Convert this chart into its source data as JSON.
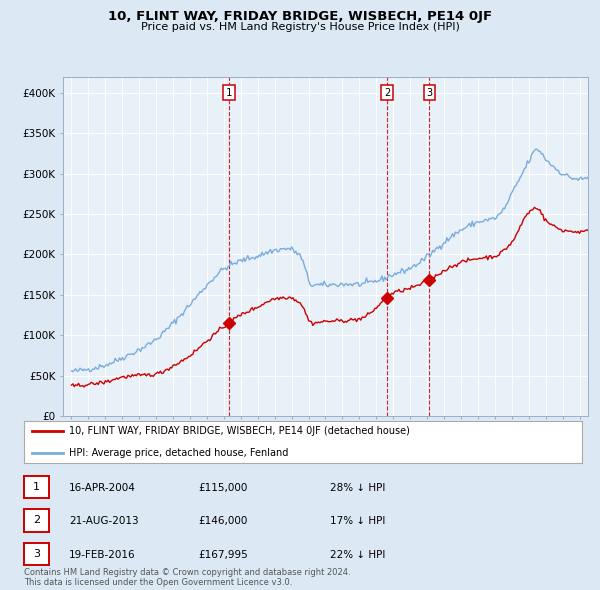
{
  "title": "10, FLINT WAY, FRIDAY BRIDGE, WISBECH, PE14 0JF",
  "subtitle": "Price paid vs. HM Land Registry's House Price Index (HPI)",
  "transactions": [
    {
      "num": 1,
      "date": "16-APR-2004",
      "date_x": 2004.29,
      "price": 115000,
      "pct": "28%",
      "marker_y": 115000
    },
    {
      "num": 2,
      "date": "21-AUG-2013",
      "date_x": 2013.63,
      "price": 146000,
      "pct": "17%",
      "marker_y": 146000
    },
    {
      "num": 3,
      "date": "19-FEB-2016",
      "date_x": 2016.13,
      "price": 167995,
      "pct": "22%",
      "marker_y": 167995
    }
  ],
  "legend_line1": "10, FLINT WAY, FRIDAY BRIDGE, WISBECH, PE14 0JF (detached house)",
  "legend_line2": "HPI: Average price, detached house, Fenland",
  "copyright_text": "Contains HM Land Registry data © Crown copyright and database right 2024.\nThis data is licensed under the Open Government Licence v3.0.",
  "hpi_color": "#7aaddc",
  "property_color": "#cc0000",
  "bg_color": "#dce9f5",
  "plot_bg": "#e8f0f8",
  "ylim": [
    0,
    420000
  ],
  "xlim": [
    1994.5,
    2025.5
  ],
  "hpi_anchors_t": [
    1995,
    1996,
    1997,
    1998,
    1999,
    2000,
    2001,
    2002,
    2003,
    2004,
    2005,
    2006,
    2007,
    2007.8,
    2008.5,
    2009.2,
    2010,
    2011,
    2012,
    2013,
    2014,
    2015,
    2016,
    2017,
    2018,
    2019,
    2020,
    2020.5,
    2021,
    2021.5,
    2022,
    2022.5,
    2023,
    2023.5,
    2024,
    2024.5,
    2025
  ],
  "hpi_anchors_v": [
    55000,
    58000,
    63000,
    72000,
    82000,
    95000,
    115000,
    138000,
    162000,
    182000,
    192000,
    198000,
    205000,
    207000,
    198000,
    162000,
    162000,
    163000,
    163000,
    167000,
    175000,
    183000,
    197000,
    215000,
    230000,
    240000,
    245000,
    255000,
    275000,
    295000,
    315000,
    330000,
    318000,
    308000,
    300000,
    295000,
    293000
  ],
  "prop_anchors_t": [
    1995,
    1996,
    1997,
    1998,
    1999,
    2000,
    2001,
    2002,
    2003,
    2004.29,
    2005,
    2006,
    2007,
    2007.8,
    2008.5,
    2009.2,
    2010,
    2011,
    2012,
    2013.63,
    2014,
    2015,
    2016.13,
    2017,
    2018,
    2019,
    2020,
    2021,
    2022,
    2022.5,
    2023,
    2023.5,
    2024,
    2025
  ],
  "prop_anchors_v": [
    37000,
    39000,
    42000,
    48000,
    50000,
    52000,
    62000,
    75000,
    93000,
    115000,
    125000,
    135000,
    145000,
    147000,
    140000,
    115000,
    117000,
    118000,
    120000,
    146000,
    152000,
    158000,
    167995,
    180000,
    190000,
    195000,
    198000,
    215000,
    252000,
    258000,
    242000,
    235000,
    230000,
    228000
  ],
  "yticks": [
    0,
    50000,
    100000,
    150000,
    200000,
    250000,
    300000,
    350000,
    400000
  ],
  "ytick_labels": [
    "£0",
    "£50K",
    "£100K",
    "£150K",
    "£200K",
    "£250K",
    "£300K",
    "£350K",
    "£400K"
  ],
  "table_data": [
    [
      "1",
      "16-APR-2004",
      "£115,000",
      "28% ↓ HPI"
    ],
    [
      "2",
      "21-AUG-2013",
      "£146,000",
      "17% ↓ HPI"
    ],
    [
      "3",
      "19-FEB-2016",
      "£167,995",
      "22% ↓ HPI"
    ]
  ]
}
